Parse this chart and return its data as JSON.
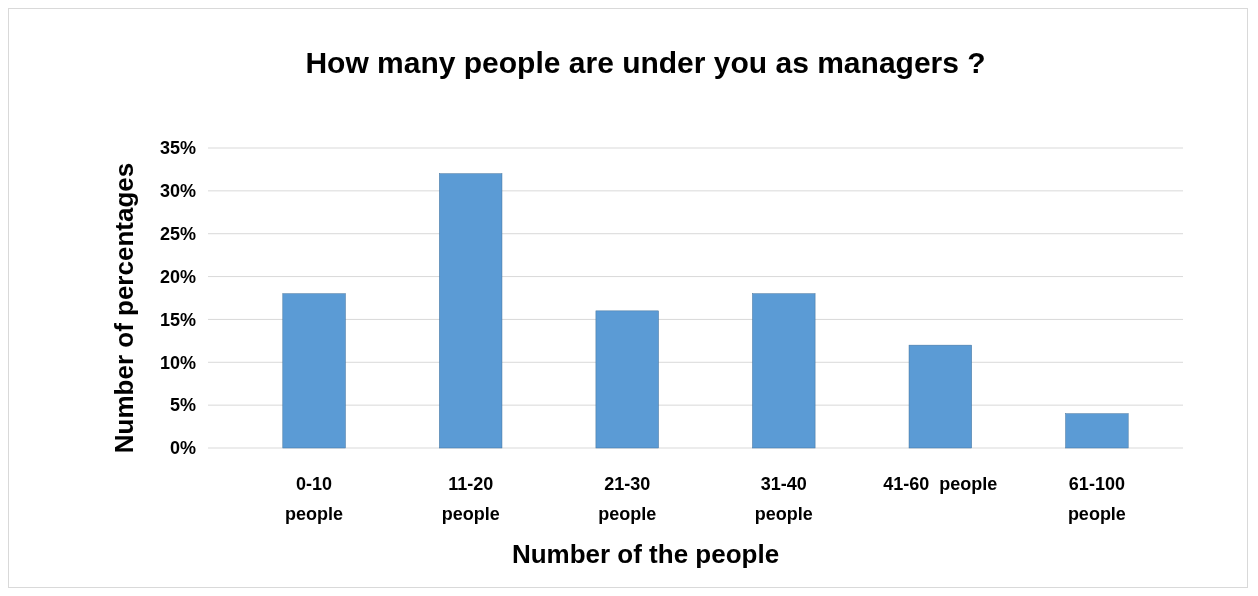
{
  "chart_data": {
    "type": "bar",
    "title": "How many people  are under you as managers ?",
    "xlabel": "Number of the people",
    "ylabel": "Number of percentages",
    "categories": [
      "0-10\npeople",
      "11-20\npeople",
      "21-30\npeople",
      "31-40\npeople",
      "41-60  people",
      "61-100\npeople"
    ],
    "values": [
      18,
      32,
      16,
      18,
      12,
      4
    ],
    "color": "#5b9bd5",
    "ylim": [
      0,
      35
    ],
    "yticks": [
      {
        "value": 0,
        "label": "0%"
      },
      {
        "value": 5,
        "label": "5%"
      },
      {
        "value": 10,
        "label": "10%"
      },
      {
        "value": 15,
        "label": "15%"
      },
      {
        "value": 20,
        "label": "20%"
      },
      {
        "value": 25,
        "label": "25%"
      },
      {
        "value": 30,
        "label": "30%"
      },
      {
        "value": 35,
        "label": "35%"
      }
    ],
    "grid": true
  }
}
